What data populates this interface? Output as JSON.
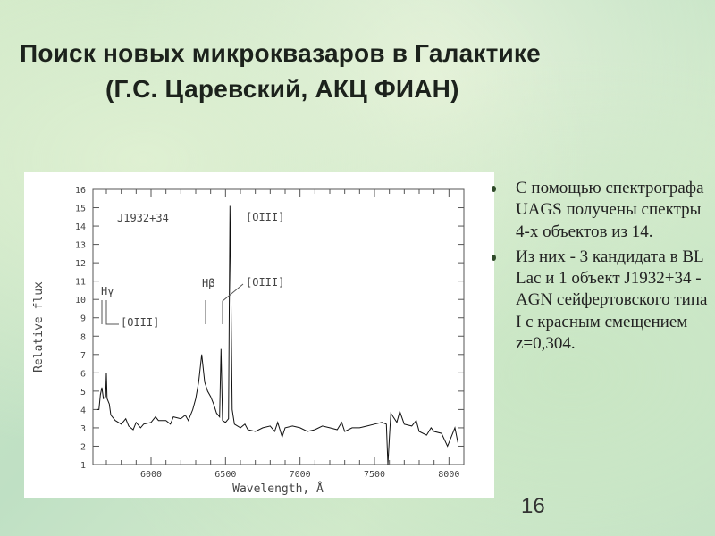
{
  "slide": {
    "title_line1": "Поиск новых микроквазаров в Галактике",
    "title_line2": "(Г.С. Царевский, АКЦ ФИАН)",
    "bullets": [
      "С помощью спектрографа UAGS получены спектры 4-х объектов из 14.",
      "Из них - 3 кандидата в BL Lac и 1 объект J1932+34 - AGN сейфертовского типа I с красным смещением z=0,304."
    ],
    "page_number": "16"
  },
  "chart_data": {
    "type": "line",
    "title": "J1932+34",
    "xlabel": "Wavelength, Å",
    "ylabel": "Relative flux",
    "xlim": [
      5610,
      8100
    ],
    "ylim": [
      1,
      16
    ],
    "xticks": [
      6000,
      6500,
      7000,
      7500,
      8000
    ],
    "yticks": [
      1,
      2,
      3,
      4,
      5,
      6,
      7,
      8,
      9,
      10,
      11,
      12,
      13,
      14,
      15,
      16
    ],
    "grid": false,
    "line_color": "#111111",
    "annotations": [
      {
        "text": "[OIII]",
        "target": 6530
      },
      {
        "text": "Hβ",
        "target": 6340
      },
      {
        "text": "[OIII]",
        "target": 6470
      },
      {
        "text": "Hγ",
        "target": 5665
      },
      {
        "text": "[OIII]",
        "target": 5700
      }
    ],
    "series": [
      {
        "x": [
          5640,
          5650,
          5660,
          5670,
          5680,
          5695,
          5700,
          5705,
          5720,
          5730,
          5760,
          5800,
          5830,
          5850,
          5880,
          5900,
          5930,
          5950,
          6000,
          6030,
          6050,
          6100,
          6130,
          6150,
          6200,
          6230,
          6250,
          6280,
          6300,
          6320,
          6340,
          6360,
          6380,
          6400,
          6420,
          6440,
          6460,
          6470,
          6480,
          6500,
          6520,
          6530,
          6545,
          6560,
          6600,
          6630,
          6650,
          6700,
          6750,
          6800,
          6830,
          6850,
          6880,
          6900,
          6950,
          7000,
          7050,
          7100,
          7150,
          7200,
          7250,
          7280,
          7300,
          7350,
          7400,
          7450,
          7500,
          7550,
          7580,
          7590,
          7600,
          7610,
          7650,
          7670,
          7700,
          7750,
          7780,
          7800,
          7850,
          7880,
          7900,
          7950,
          7990,
          8020,
          8040,
          8060
        ],
        "y": [
          4.0,
          4.0,
          4.8,
          5.2,
          4.6,
          4.7,
          6.0,
          4.6,
          4.3,
          3.7,
          3.4,
          3.2,
          3.5,
          3.1,
          2.9,
          3.3,
          3.0,
          3.2,
          3.3,
          3.6,
          3.4,
          3.4,
          3.2,
          3.6,
          3.5,
          3.7,
          3.4,
          4.0,
          4.6,
          5.5,
          7.0,
          5.5,
          5.0,
          4.7,
          4.3,
          3.8,
          3.6,
          7.3,
          3.4,
          3.3,
          3.5,
          15.1,
          4.0,
          3.2,
          3.0,
          3.2,
          2.9,
          2.8,
          3.0,
          3.1,
          2.8,
          3.3,
          2.5,
          3.0,
          3.1,
          3.0,
          2.8,
          2.9,
          3.1,
          3.0,
          2.9,
          3.3,
          2.8,
          3.0,
          3.0,
          3.1,
          3.2,
          3.3,
          3.2,
          1.0,
          2.5,
          3.8,
          3.3,
          3.9,
          3.2,
          3.1,
          3.4,
          2.8,
          2.6,
          3.0,
          2.8,
          2.7,
          2.0,
          2.6,
          3.0,
          2.2
        ]
      }
    ]
  }
}
